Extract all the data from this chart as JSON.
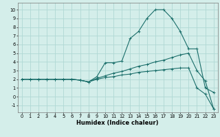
{
  "xlabel": "Humidex (Indice chaleur)",
  "xlim": [
    -0.5,
    23.5
  ],
  "ylim": [
    -1.8,
    10.8
  ],
  "xticks": [
    0,
    1,
    2,
    3,
    4,
    5,
    6,
    7,
    8,
    9,
    10,
    11,
    12,
    13,
    14,
    15,
    16,
    17,
    18,
    19,
    20,
    21,
    22,
    23
  ],
  "yticks": [
    -1,
    0,
    1,
    2,
    3,
    4,
    5,
    6,
    7,
    8,
    9,
    10
  ],
  "bg_color": "#d4eeea",
  "grid_color": "#b0d8d4",
  "line_color": "#1a6e6a",
  "line1_x": [
    0,
    1,
    2,
    3,
    4,
    5,
    6,
    7,
    8,
    9,
    10,
    11,
    12,
    13,
    14,
    15,
    16,
    17,
    18,
    19,
    20,
    21,
    22,
    23
  ],
  "line1_y": [
    2,
    2,
    2,
    2,
    2,
    2,
    2,
    1.9,
    1.7,
    2.3,
    3.9,
    3.9,
    4.1,
    6.7,
    7.5,
    9.0,
    10.0,
    10.0,
    9.0,
    7.5,
    5.5,
    5.5,
    1.0,
    0.5
  ],
  "line2_x": [
    0,
    1,
    2,
    3,
    4,
    5,
    6,
    7,
    8,
    9,
    10,
    11,
    12,
    13,
    14,
    15,
    16,
    17,
    18,
    19,
    20,
    21,
    22,
    23
  ],
  "line2_y": [
    2,
    2,
    2,
    2,
    2,
    2,
    2,
    1.9,
    1.7,
    2.1,
    2.4,
    2.7,
    2.9,
    3.2,
    3.5,
    3.7,
    4.0,
    4.2,
    4.5,
    4.8,
    5.0,
    3.0,
    1.8,
    -1.4
  ],
  "line3_x": [
    0,
    1,
    2,
    3,
    4,
    5,
    6,
    7,
    8,
    9,
    10,
    11,
    12,
    13,
    14,
    15,
    16,
    17,
    18,
    19,
    20,
    21,
    22,
    23
  ],
  "line3_y": [
    2,
    2,
    2,
    2,
    2,
    2,
    2,
    1.9,
    1.7,
    2.0,
    2.2,
    2.3,
    2.5,
    2.6,
    2.8,
    2.9,
    3.0,
    3.1,
    3.2,
    3.3,
    3.3,
    1.0,
    0.3,
    -1.4
  ]
}
